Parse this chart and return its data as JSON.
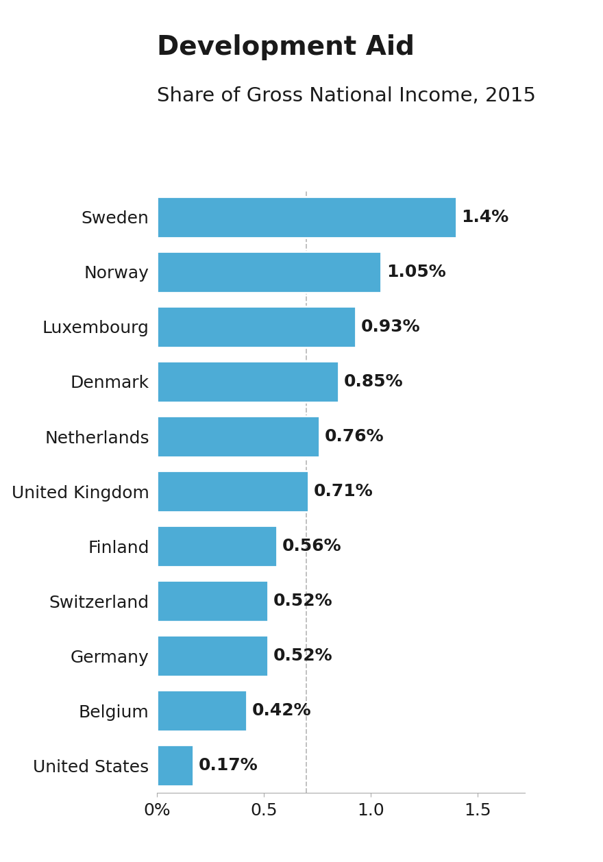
{
  "title": "Development Aid",
  "subtitle": "Share of Gross National Income, 2015",
  "countries": [
    "United States",
    "Belgium",
    "Germany",
    "Switzerland",
    "Finland",
    "United Kingdom",
    "Netherlands",
    "Denmark",
    "Luxembourg",
    "Norway",
    "Sweden"
  ],
  "values": [
    0.17,
    0.42,
    0.52,
    0.52,
    0.56,
    0.71,
    0.76,
    0.85,
    0.93,
    1.05,
    1.4
  ],
  "labels": [
    "0.17%",
    "0.42%",
    "0.52%",
    "0.52%",
    "0.56%",
    "0.71%",
    "0.76%",
    "0.85%",
    "0.93%",
    "1.05%",
    "1.4%"
  ],
  "bar_color": "#4dacd6",
  "background_color": "#ffffff",
  "title_fontsize": 28,
  "subtitle_fontsize": 21,
  "label_fontsize": 18,
  "tick_fontsize": 18,
  "country_fontsize": 18,
  "xlim": [
    0,
    1.72
  ],
  "xticks": [
    0,
    0.5,
    1.0,
    1.5
  ],
  "xticklabels": [
    "0%",
    "0.5",
    "1.0",
    "1.5"
  ],
  "vline_x": 0.7,
  "vline_color": "#bbbbbb",
  "vline_style": "dashed"
}
